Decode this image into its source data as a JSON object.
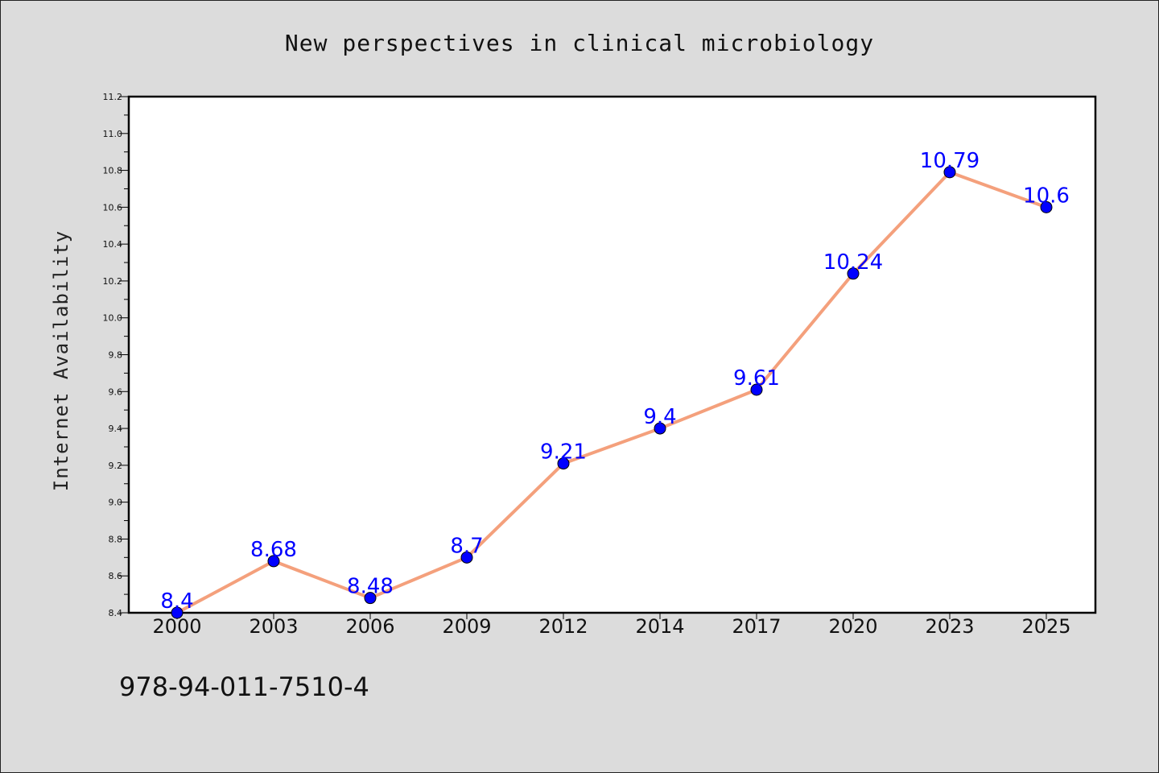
{
  "chart_data": {
    "type": "line",
    "title": "New perspectives in clinical microbiology",
    "xlabel": "",
    "ylabel": "Internet Availability",
    "categories": [
      "2000",
      "2003",
      "2006",
      "2009",
      "2012",
      "2014",
      "2017",
      "2020",
      "2023",
      "2025"
    ],
    "series": [
      {
        "values": [
          8.4,
          8.68,
          8.48,
          8.7,
          9.21,
          9.4,
          9.61,
          10.24,
          10.79,
          10.6
        ],
        "data_labels": [
          "8.4",
          "8.68",
          "8.48",
          "8.7",
          "9.21",
          "9.4",
          "9.61",
          "10.24",
          "10.79",
          "10.6"
        ]
      }
    ],
    "ylim": [
      8.4,
      11.2
    ],
    "yticks": [
      "8.4",
      "8.6",
      "8.8",
      "9.0",
      "9.2",
      "9.4",
      "9.6",
      "9.8",
      "10.0",
      "10.2",
      "10.4",
      "10.6",
      "10.8",
      "11.0",
      "11.2"
    ],
    "grid": false,
    "legend": "none",
    "colors": {
      "line": "#f4a07c",
      "marker": "#0000ff",
      "data_label": "#0000ff",
      "background": "#dcdcdc",
      "plot_background": "#ffffff"
    }
  },
  "footer": {
    "isbn": "978-94-011-7510-4"
  }
}
